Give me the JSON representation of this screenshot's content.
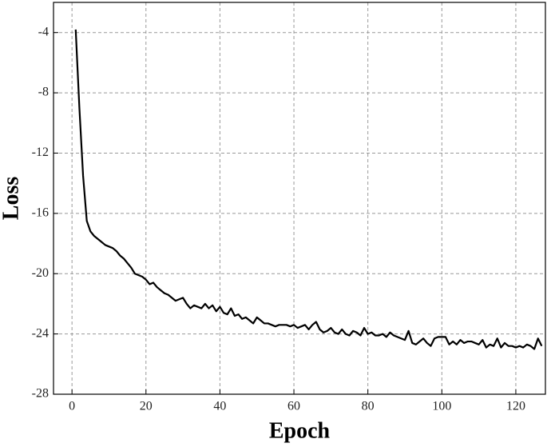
{
  "chart_data": {
    "type": "line",
    "x_label": "Epoch",
    "y_label": "Loss",
    "xlim": [
      -5,
      128
    ],
    "ylim": [
      -28,
      -2
    ],
    "xticks": [
      0,
      20,
      40,
      60,
      80,
      100,
      120
    ],
    "yticks": [
      -28,
      -24,
      -20,
      -16,
      -12,
      -8,
      -4
    ],
    "grid": true,
    "series": [
      {
        "color": "#000000",
        "x": [
          1,
          2,
          3,
          4,
          5,
          6,
          7,
          8,
          9,
          10,
          11,
          12,
          13,
          14,
          15,
          16,
          17,
          18,
          19,
          20,
          21,
          22,
          23,
          24,
          25,
          26,
          27,
          28,
          29,
          30,
          31,
          32,
          33,
          34,
          35,
          36,
          37,
          38,
          39,
          40,
          41,
          42,
          43,
          44,
          45,
          46,
          47,
          48,
          49,
          50,
          51,
          52,
          53,
          54,
          55,
          56,
          57,
          58,
          59,
          60,
          61,
          62,
          63,
          64,
          65,
          66,
          67,
          68,
          69,
          70,
          71,
          72,
          73,
          74,
          75,
          76,
          77,
          78,
          79,
          80,
          81,
          82,
          83,
          84,
          85,
          86,
          87,
          88,
          89,
          90,
          91,
          92,
          93,
          94,
          95,
          96,
          97,
          98,
          99,
          100,
          101,
          102,
          103,
          104,
          105,
          106,
          107,
          108,
          109,
          110,
          111,
          112,
          113,
          114,
          115,
          116,
          117,
          118,
          119,
          120,
          121,
          122,
          123,
          124,
          125,
          126,
          127
        ],
        "values": [
          -3.8,
          -9,
          -13.5,
          -16.5,
          -17.2,
          -17.5,
          -17.7,
          -17.9,
          -18.1,
          -18.2,
          -18.3,
          -18.5,
          -18.8,
          -19.0,
          -19.3,
          -19.6,
          -20.0,
          -20.1,
          -20.2,
          -20.4,
          -20.7,
          -20.6,
          -20.9,
          -21.1,
          -21.3,
          -21.4,
          -21.6,
          -21.8,
          -21.7,
          -21.6,
          -22.0,
          -22.3,
          -22.1,
          -22.2,
          -22.3,
          -22.0,
          -22.3,
          -22.1,
          -22.5,
          -22.2,
          -22.6,
          -22.7,
          -22.3,
          -22.8,
          -22.7,
          -23.0,
          -22.9,
          -23.1,
          -23.3,
          -22.9,
          -23.1,
          -23.3,
          -23.3,
          -23.4,
          -23.5,
          -23.4,
          -23.4,
          -23.4,
          -23.5,
          -23.4,
          -23.6,
          -23.5,
          -23.4,
          -23.7,
          -23.4,
          -23.2,
          -23.7,
          -23.9,
          -23.8,
          -23.6,
          -23.9,
          -24.0,
          -23.7,
          -24.0,
          -24.1,
          -23.8,
          -23.9,
          -24.1,
          -23.6,
          -24.0,
          -23.9,
          -24.1,
          -24.1,
          -24.0,
          -24.2,
          -23.9,
          -24.1,
          -24.2,
          -24.3,
          -24.4,
          -23.8,
          -24.6,
          -24.7,
          -24.5,
          -24.3,
          -24.6,
          -24.8,
          -24.3,
          -24.2,
          -24.2,
          -24.2,
          -24.7,
          -24.5,
          -24.7,
          -24.4,
          -24.6,
          -24.5,
          -24.5,
          -24.6,
          -24.7,
          -24.4,
          -24.9,
          -24.7,
          -24.8,
          -24.3,
          -24.9,
          -24.6,
          -24.8,
          -24.8,
          -24.9,
          -24.8,
          -24.9,
          -24.7,
          -24.8,
          -25.0,
          -24.3,
          -24.8
        ]
      }
    ]
  }
}
